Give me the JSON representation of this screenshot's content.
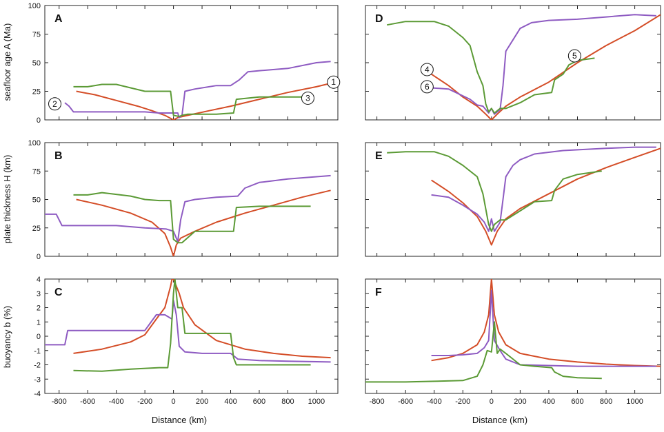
{
  "colors": {
    "red": "#d44d27",
    "purple": "#8e5bc2",
    "green": "#5b9a35",
    "frame": "#222222"
  },
  "axis_labels": {
    "age": "seafloor age A (Ma)",
    "thickness": "plate thickness H (km)",
    "buoyancy": "buoyancy b (%)",
    "distance_left": "Distance (km)",
    "distance_right": "Distance (km)"
  },
  "chart_data": [
    {
      "type": "line",
      "panel": "A",
      "title": "",
      "xlabel": "",
      "ylabel": "seafloor age A (Ma)",
      "xlim": [
        -900,
        1150
      ],
      "ylim": [
        0,
        100
      ],
      "yticks": [
        0,
        25,
        50,
        75,
        100
      ],
      "annotations": [
        {
          "label": "1",
          "x": 1120,
          "y": 33
        },
        {
          "label": "2",
          "x": -830,
          "y": 14
        },
        {
          "label": "3",
          "x": 940,
          "y": 19
        }
      ],
      "series": [
        {
          "name": "red",
          "color": "#d44d27",
          "x": [
            -680,
            -550,
            -400,
            -250,
            -150,
            -60,
            0,
            30,
            100,
            250,
            400,
            600,
            800,
            1000,
            1100
          ],
          "y": [
            25,
            22,
            17,
            12,
            8,
            4,
            0,
            2,
            4,
            8,
            12,
            18,
            24,
            29,
            32
          ]
        },
        {
          "name": "purple",
          "color": "#8e5bc2",
          "x": [
            -760,
            -730,
            -700,
            -500,
            -300,
            -200,
            -100,
            -50,
            30,
            40,
            60,
            80,
            150,
            300,
            400,
            460,
            520,
            600,
            800,
            1000,
            1100
          ],
          "y": [
            15,
            12,
            7,
            7,
            7,
            7,
            6,
            6,
            6,
            2,
            4,
            25,
            27,
            30,
            30,
            35,
            42,
            43,
            45,
            50,
            51
          ]
        },
        {
          "name": "green",
          "color": "#5b9a35",
          "x": [
            -700,
            -600,
            -500,
            -400,
            -300,
            -200,
            -100,
            -20,
            0,
            40,
            60,
            100,
            200,
            300,
            420,
            440,
            600,
            800,
            960
          ],
          "y": [
            29,
            29,
            31,
            31,
            28,
            25,
            25,
            25,
            4,
            3,
            4,
            5,
            5,
            5,
            6,
            18,
            20,
            20,
            20
          ]
        }
      ]
    },
    {
      "type": "line",
      "panel": "B",
      "title": "",
      "xlabel": "",
      "ylabel": "plate thickness H (km)",
      "xlim": [
        -900,
        1150
      ],
      "ylim": [
        0,
        100
      ],
      "yticks": [
        0,
        25,
        50,
        75,
        100
      ],
      "series": [
        {
          "name": "red",
          "color": "#d44d27",
          "x": [
            -680,
            -500,
            -300,
            -150,
            -60,
            -20,
            0,
            20,
            50,
            150,
            300,
            500,
            700,
            900,
            1100
          ],
          "y": [
            50,
            45,
            38,
            30,
            20,
            8,
            0,
            10,
            16,
            22,
            30,
            38,
            45,
            52,
            58
          ]
        },
        {
          "name": "purple",
          "color": "#8e5bc2",
          "x": [
            -900,
            -820,
            -780,
            -600,
            -400,
            -200,
            -50,
            0,
            30,
            50,
            80,
            150,
            300,
            450,
            500,
            600,
            800,
            1000,
            1100
          ],
          "y": [
            37,
            37,
            27,
            27,
            27,
            25,
            24,
            22,
            13,
            32,
            48,
            50,
            52,
            53,
            60,
            65,
            68,
            70,
            71
          ]
        },
        {
          "name": "green",
          "color": "#5b9a35",
          "x": [
            -700,
            -600,
            -500,
            -300,
            -200,
            -100,
            -20,
            0,
            30,
            60,
            150,
            300,
            420,
            440,
            600,
            800,
            960
          ],
          "y": [
            54,
            54,
            56,
            53,
            50,
            49,
            49,
            15,
            12,
            12,
            22,
            22,
            22,
            43,
            44,
            44,
            44
          ]
        }
      ]
    },
    {
      "type": "line",
      "panel": "C",
      "title": "",
      "xlabel": "Distance (km)",
      "ylabel": "buoyancy b (%)",
      "xlim": [
        -900,
        1150
      ],
      "ylim": [
        -4,
        4
      ],
      "yticks": [
        -4,
        -3,
        -2,
        -1,
        0,
        1,
        2,
        3,
        4
      ],
      "xticks": [
        -800,
        -600,
        -400,
        -200,
        0,
        200,
        400,
        600,
        800,
        1000
      ],
      "series": [
        {
          "name": "red",
          "color": "#d44d27",
          "x": [
            -700,
            -500,
            -300,
            -200,
            -120,
            -60,
            -20,
            -10,
            0,
            20,
            40,
            70,
            150,
            300,
            500,
            700,
            900,
            1100
          ],
          "y": [
            -1.2,
            -0.9,
            -0.4,
            0.1,
            1.2,
            2.0,
            3.5,
            4.0,
            4.0,
            3.5,
            3.0,
            2.0,
            0.8,
            -0.3,
            -0.9,
            -1.2,
            -1.4,
            -1.5
          ]
        },
        {
          "name": "purple",
          "color": "#8e5bc2",
          "x": [
            -900,
            -760,
            -740,
            -500,
            -300,
            -200,
            -120,
            -60,
            -10,
            0,
            20,
            40,
            80,
            200,
            400,
            450,
            600,
            800,
            1100
          ],
          "y": [
            -0.6,
            -0.6,
            0.4,
            0.4,
            0.4,
            0.4,
            1.5,
            1.5,
            1.2,
            2.5,
            1.5,
            -0.7,
            -1.1,
            -1.2,
            -1.2,
            -1.6,
            -1.7,
            -1.75,
            -1.8
          ]
        },
        {
          "name": "green",
          "color": "#5b9a35",
          "x": [
            -700,
            -500,
            -300,
            -100,
            -40,
            -20,
            0,
            10,
            30,
            60,
            80,
            200,
            400,
            420,
            440,
            600,
            800,
            960
          ],
          "y": [
            -2.4,
            -2.45,
            -2.3,
            -2.2,
            -2.2,
            -0.5,
            3.0,
            4.0,
            2.0,
            2.0,
            0.2,
            0.2,
            0.2,
            -1.5,
            -2.0,
            -2.0,
            -2.0,
            -2.0
          ]
        }
      ]
    },
    {
      "type": "line",
      "panel": "D",
      "title": "",
      "xlabel": "",
      "ylabel": "",
      "xlim": [
        -880,
        1180
      ],
      "ylim": [
        0,
        100
      ],
      "yticks": [
        0,
        25,
        50,
        75,
        100
      ],
      "annotations": [
        {
          "label": "4",
          "x": -450,
          "y": 44
        },
        {
          "label": "5",
          "x": 580,
          "y": 56
        },
        {
          "label": "6",
          "x": -450,
          "y": 29
        }
      ],
      "series": [
        {
          "name": "red",
          "color": "#d44d27",
          "x": [
            -420,
            -300,
            -200,
            -100,
            -40,
            0,
            40,
            100,
            200,
            400,
            600,
            800,
            1000,
            1180
          ],
          "y": [
            40,
            30,
            20,
            12,
            5,
            0,
            5,
            12,
            20,
            33,
            50,
            65,
            78,
            92
          ]
        },
        {
          "name": "purple",
          "color": "#8e5bc2",
          "x": [
            -420,
            -300,
            -150,
            -100,
            -60,
            -20,
            0,
            20,
            60,
            80,
            100,
            150,
            200,
            280,
            400,
            600,
            800,
            1000,
            1150
          ],
          "y": [
            28,
            27,
            18,
            13,
            12,
            6,
            10,
            5,
            9,
            30,
            60,
            70,
            80,
            85,
            87,
            88,
            90,
            92,
            91
          ]
        },
        {
          "name": "green",
          "color": "#5b9a35",
          "x": [
            -730,
            -600,
            -400,
            -300,
            -200,
            -150,
            -100,
            -60,
            -40,
            -20,
            0,
            20,
            60,
            100,
            200,
            300,
            420,
            440,
            500,
            540,
            600,
            720
          ],
          "y": [
            83,
            86,
            86,
            82,
            72,
            65,
            42,
            30,
            14,
            7,
            10,
            6,
            10,
            10,
            15,
            22,
            24,
            35,
            40,
            48,
            52,
            54
          ]
        }
      ]
    },
    {
      "type": "line",
      "panel": "E",
      "title": "",
      "xlabel": "",
      "ylabel": "",
      "xlim": [
        -880,
        1180
      ],
      "ylim": [
        0,
        100
      ],
      "yticks": [
        0,
        25,
        50,
        75,
        100
      ],
      "series": [
        {
          "name": "red",
          "color": "#d44d27",
          "x": [
            -420,
            -300,
            -200,
            -100,
            -40,
            0,
            40,
            100,
            200,
            400,
            600,
            800,
            1000,
            1180
          ],
          "y": [
            67,
            57,
            47,
            35,
            22,
            10,
            22,
            33,
            42,
            55,
            68,
            78,
            87,
            95
          ]
        },
        {
          "name": "purple",
          "color": "#8e5bc2",
          "x": [
            -420,
            -300,
            -200,
            -100,
            -50,
            -20,
            0,
            20,
            60,
            80,
            100,
            150,
            200,
            300,
            500,
            800,
            1000,
            1150
          ],
          "y": [
            54,
            52,
            45,
            37,
            30,
            22,
            33,
            22,
            30,
            50,
            70,
            80,
            85,
            90,
            93,
            95,
            96,
            96
          ]
        },
        {
          "name": "green",
          "color": "#5b9a35",
          "x": [
            -730,
            -600,
            -400,
            -300,
            -200,
            -100,
            -60,
            -20,
            0,
            20,
            60,
            100,
            200,
            300,
            420,
            440,
            500,
            600,
            770
          ],
          "y": [
            91,
            92,
            92,
            88,
            80,
            70,
            55,
            28,
            22,
            28,
            32,
            32,
            40,
            48,
            49,
            58,
            68,
            72,
            75
          ]
        }
      ]
    },
    {
      "type": "line",
      "panel": "F",
      "title": "",
      "xlabel": "Distance (km)",
      "ylabel": "",
      "xlim": [
        -880,
        1180
      ],
      "ylim": [
        -4,
        4
      ],
      "yticks": [
        -4,
        -3,
        -2,
        -1,
        0,
        1,
        2,
        3,
        4
      ],
      "xticks": [
        -800,
        -600,
        -400,
        -200,
        0,
        200,
        400,
        600,
        800,
        1000
      ],
      "series": [
        {
          "name": "red",
          "color": "#d44d27",
          "x": [
            -420,
            -300,
            -200,
            -100,
            -50,
            -20,
            0,
            20,
            50,
            100,
            200,
            400,
            600,
            800,
            1000,
            1180
          ],
          "y": [
            -1.7,
            -1.5,
            -1.2,
            -0.6,
            0.3,
            1.5,
            4.0,
            1.5,
            0.3,
            -0.6,
            -1.2,
            -1.6,
            -1.8,
            -1.95,
            -2.05,
            -2.1
          ]
        },
        {
          "name": "purple",
          "color": "#8e5bc2",
          "x": [
            -420,
            -300,
            -200,
            -100,
            -50,
            -20,
            0,
            20,
            60,
            100,
            200,
            400,
            600,
            800,
            1000,
            1150
          ],
          "y": [
            -1.35,
            -1.35,
            -1.3,
            -1.2,
            -0.8,
            -0.3,
            3.2,
            -0.3,
            -1.0,
            -1.6,
            -2.0,
            -2.05,
            -2.1,
            -2.1,
            -2.1,
            -2.1
          ]
        },
        {
          "name": "green",
          "color": "#5b9a35",
          "x": [
            -880,
            -600,
            -400,
            -200,
            -100,
            -60,
            -30,
            0,
            20,
            40,
            60,
            100,
            200,
            300,
            420,
            440,
            500,
            600,
            770
          ],
          "y": [
            -3.2,
            -3.2,
            -3.15,
            -3.1,
            -2.8,
            -2.0,
            -1.0,
            -1.1,
            1.0,
            -1.2,
            -0.9,
            -1.2,
            -2.0,
            -2.1,
            -2.2,
            -2.5,
            -2.8,
            -2.9,
            -2.95
          ]
        }
      ]
    }
  ]
}
